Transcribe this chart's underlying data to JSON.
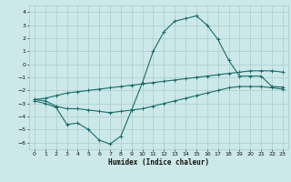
{
  "title": "",
  "xlabel": "Humidex (Indice chaleur)",
  "ylabel": "",
  "xlim": [
    -0.5,
    23.5
  ],
  "ylim": [
    -6.5,
    4.5
  ],
  "yticks": [
    4,
    3,
    2,
    1,
    0,
    -1,
    -2,
    -3,
    -4,
    -5,
    -6
  ],
  "xticks": [
    0,
    1,
    2,
    3,
    4,
    5,
    6,
    7,
    8,
    9,
    10,
    11,
    12,
    13,
    14,
    15,
    16,
    17,
    18,
    19,
    20,
    21,
    22,
    23
  ],
  "background_color": "#cce8e8",
  "grid_color": "#aacccc",
  "line_color": "#1a6b6b",
  "line1_x": [
    0,
    1,
    2,
    3,
    4,
    5,
    6,
    7,
    8,
    9,
    10,
    11,
    12,
    13,
    14,
    15,
    16,
    17,
    18,
    19,
    20,
    21,
    22,
    23
  ],
  "line1_y": [
    -2.7,
    -2.8,
    -3.2,
    -3.4,
    -3.4,
    -3.5,
    -3.6,
    -3.7,
    -3.6,
    -3.5,
    -3.4,
    -3.2,
    -3.0,
    -2.8,
    -2.6,
    -2.4,
    -2.2,
    -2.0,
    -1.8,
    -1.7,
    -1.7,
    -1.7,
    -1.8,
    -1.9
  ],
  "line2_x": [
    0,
    1,
    2,
    3,
    4,
    5,
    6,
    7,
    8,
    9,
    10,
    11,
    12,
    13,
    14,
    15,
    16,
    17,
    18,
    19,
    20,
    21,
    22,
    23
  ],
  "line2_y": [
    -2.8,
    -3.0,
    -3.3,
    -4.6,
    -4.5,
    -5.0,
    -5.8,
    -6.1,
    -5.5,
    -3.5,
    -1.4,
    1.0,
    2.5,
    3.3,
    3.5,
    3.7,
    3.0,
    1.9,
    0.3,
    -0.9,
    -0.9,
    -0.9,
    -1.7,
    -1.75
  ],
  "line3_x": [
    0,
    1,
    2,
    3,
    4,
    5,
    6,
    7,
    8,
    9,
    10,
    11,
    12,
    13,
    14,
    15,
    16,
    17,
    18,
    19,
    20,
    21,
    22,
    23
  ],
  "line3_y": [
    -2.7,
    -2.6,
    -2.4,
    -2.2,
    -2.1,
    -2.0,
    -1.9,
    -1.8,
    -1.7,
    -1.6,
    -1.5,
    -1.4,
    -1.3,
    -1.2,
    -1.1,
    -1.0,
    -0.9,
    -0.8,
    -0.7,
    -0.6,
    -0.5,
    -0.5,
    -0.5,
    -0.6
  ]
}
